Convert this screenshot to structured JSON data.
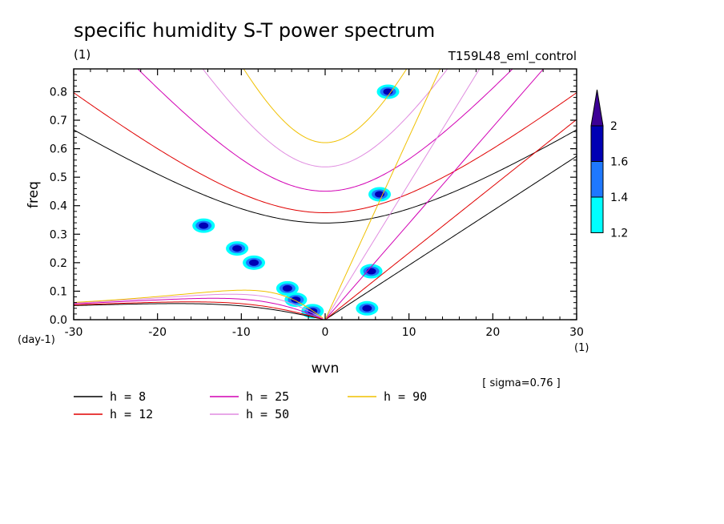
{
  "chart_data": {
    "type": "contour",
    "title": "specific humidity S-T power spectrum",
    "subtitle_left": "(1)",
    "subtitle_right": "T159L48_eml_control",
    "xlabel": "wvn",
    "ylabel": "freq",
    "x_unit_label": "(1)",
    "y_unit_label": "(day-1)",
    "xlim": [
      -30,
      30
    ],
    "ylim": [
      0,
      0.88
    ],
    "x_ticks": [
      "-30",
      "-20",
      "-10",
      "0",
      "10",
      "20",
      "30"
    ],
    "x_tick_values": [
      -30,
      -20,
      -10,
      0,
      10,
      20,
      30
    ],
    "y_ticks": [
      "0.0",
      "0.1",
      "0.2",
      "0.3",
      "0.4",
      "0.5",
      "0.6",
      "0.7",
      "0.8"
    ],
    "y_tick_values": [
      0,
      0.1,
      0.2,
      0.3,
      0.4,
      0.5,
      0.6,
      0.7,
      0.8
    ],
    "annotation": "[ sigma=0.76 ]",
    "colorbar": {
      "levels": [
        "1.2",
        "1.4",
        "1.6",
        "2"
      ],
      "level_values": [
        1.2,
        1.4,
        1.6,
        2.0
      ],
      "colors": [
        "#00ffff",
        "#1e78ff",
        "#0000b4",
        "#3c0096"
      ]
    },
    "dispersion_curves": [
      {
        "h": 8,
        "label": "h =  8",
        "color": "#000000"
      },
      {
        "h": 12,
        "label": "h = 12",
        "color": "#e00000"
      },
      {
        "h": 25,
        "label": "h = 25",
        "color": "#d200b4"
      },
      {
        "h": 50,
        "label": "h = 50",
        "color": "#e08ce0"
      },
      {
        "h": 90,
        "label": "h = 90",
        "color": "#f0c000"
      }
    ],
    "contour_features": [
      {
        "x": -14.5,
        "y": 0.33,
        "level": 2.0
      },
      {
        "x": -10.5,
        "y": 0.25,
        "level": 2.0
      },
      {
        "x": -8.5,
        "y": 0.2,
        "level": 2.0
      },
      {
        "x": -4.5,
        "y": 0.11,
        "level": 2.0
      },
      {
        "x": -3.5,
        "y": 0.07,
        "level": 2.0
      },
      {
        "x": -1.5,
        "y": 0.03,
        "level": 2.0
      },
      {
        "x": 5.0,
        "y": 0.04,
        "level": 2.0
      },
      {
        "x": 5.5,
        "y": 0.17,
        "level": 2.0
      },
      {
        "x": 6.5,
        "y": 0.44,
        "level": 2.0
      },
      {
        "x": 7.5,
        "y": 0.8,
        "level": 2.0
      }
    ]
  }
}
